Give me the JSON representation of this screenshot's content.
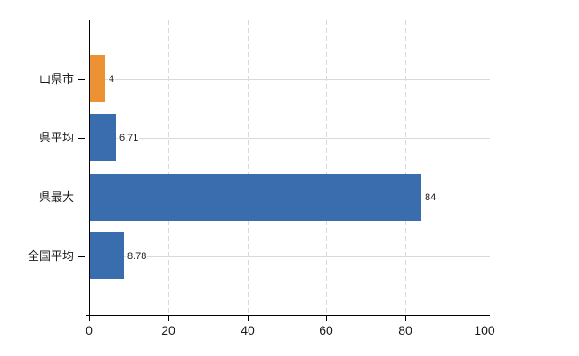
{
  "chart_data": {
    "type": "bar",
    "orientation": "horizontal",
    "title": "",
    "categories": [
      "山県市",
      "県平均",
      "県最大",
      "全国平均"
    ],
    "values": [
      4,
      6.71,
      84,
      8.78
    ],
    "value_labels": [
      "4",
      "6.71",
      "84",
      "8.78"
    ],
    "xlim": [
      0,
      100
    ],
    "x_ticks": [
      0,
      20,
      40,
      60,
      80,
      100
    ],
    "x_tick_labels": [
      "0",
      "20",
      "40",
      "60",
      "80",
      "100"
    ],
    "legend": null,
    "grid": {
      "vertical_lines": "dashed",
      "horizontal_lines": "solid",
      "top_border": "dashed",
      "right_border": "dashed"
    },
    "colors": {
      "bar_colors": [
        "#EC9233",
        "#3A6DAD",
        "#3A6DAD",
        "#3A6DAD"
      ],
      "highlight_bar": "#EC9233",
      "default_bar": "#3A6DAD",
      "solid_gridline": "#D7DBD3",
      "dashed_gridline": "#D9D7D9",
      "axis": "#000000",
      "tick_text": "#1B1B1B",
      "value_text": "#1B1B1B",
      "background": "#FFFFFF"
    }
  }
}
